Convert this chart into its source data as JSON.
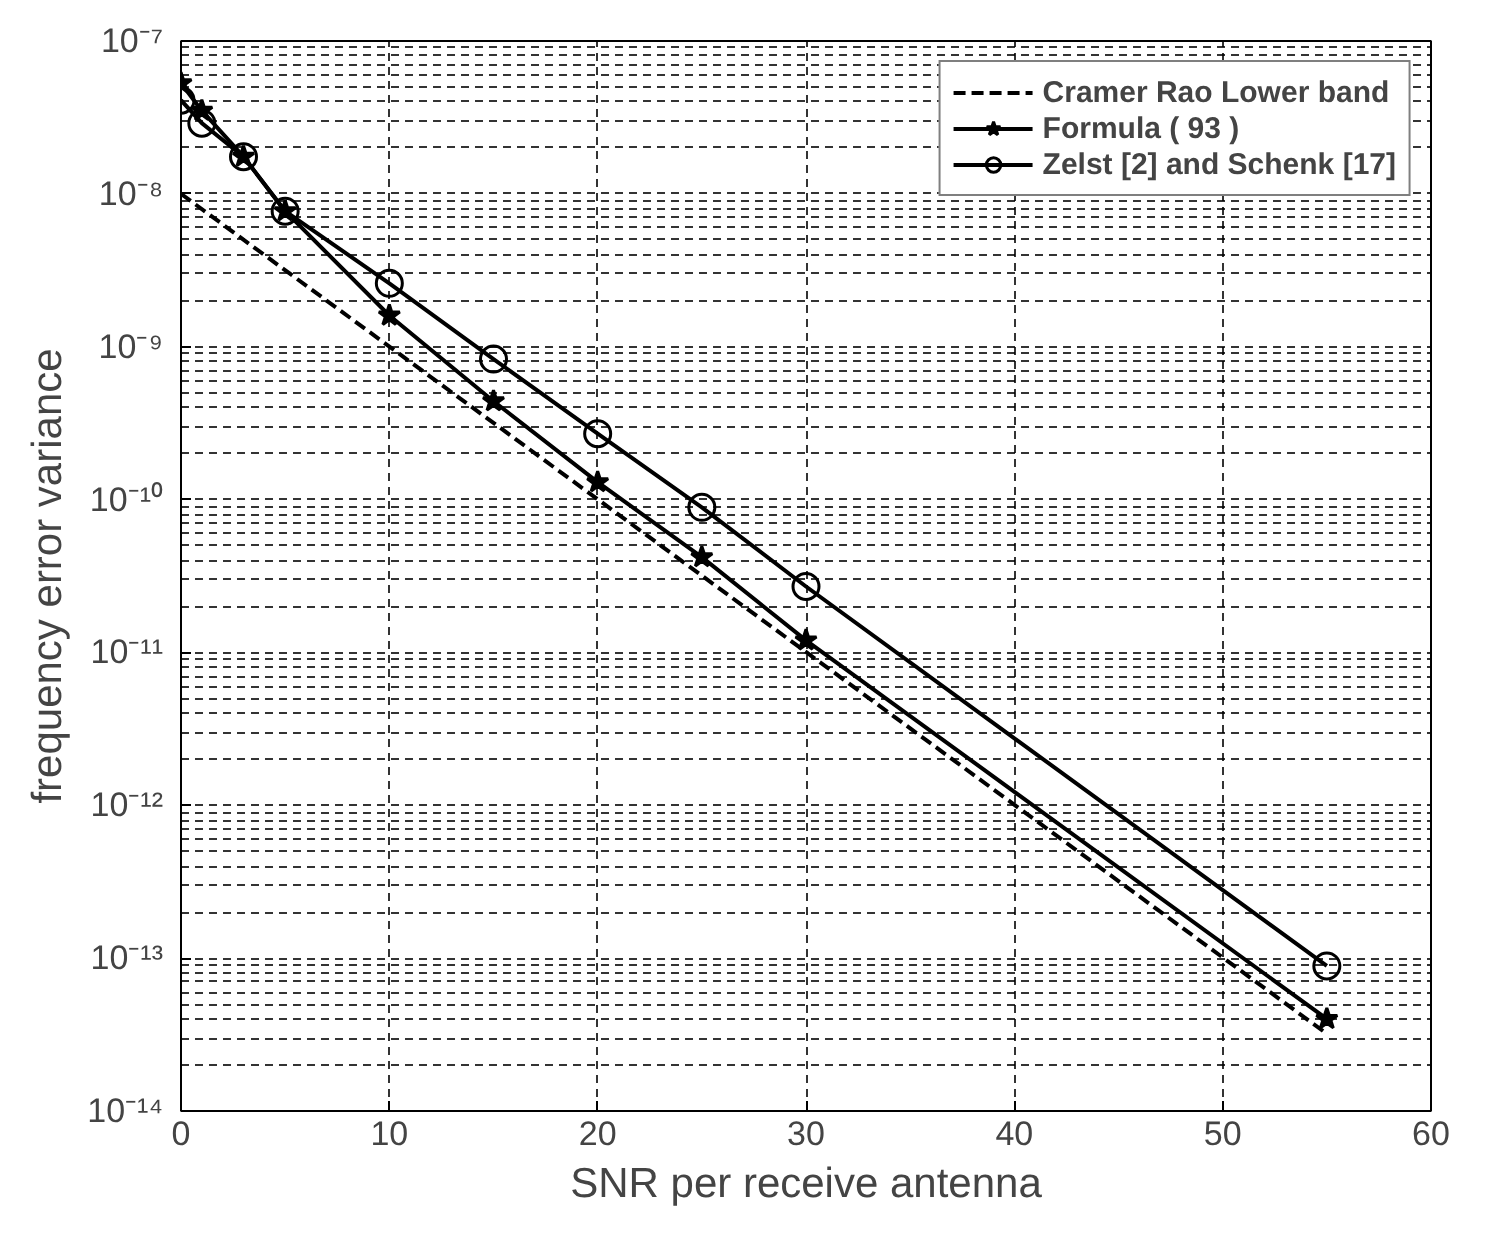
{
  "chart_data": {
    "type": "line",
    "xlabel": "SNR per receive antenna",
    "ylabel": "frequency error variance",
    "log": "y",
    "grid": true,
    "legend": "top right",
    "xlim": [
      0,
      60
    ],
    "xticks": [
      0,
      10,
      20,
      30,
      40,
      50,
      60
    ],
    "ylim": [
      1e-14,
      1e-07
    ],
    "yticks": [
      {
        "value": 1e-14,
        "label": "10⁻¹⁴"
      },
      {
        "value": 1e-13,
        "label": "10⁻¹³"
      },
      {
        "value": 1e-12,
        "label": "10⁻¹²"
      },
      {
        "value": 1e-11,
        "label": "10⁻¹¹"
      },
      {
        "value": 1e-10,
        "label": "10⁻¹⁰"
      },
      {
        "value": 1e-09,
        "label": "10⁻⁹"
      },
      {
        "value": 1e-08,
        "label": "10⁻⁸"
      },
      {
        "value": 1e-07,
        "label": "10⁻⁷"
      }
    ],
    "series": [
      {
        "name": "Cramer Rao Lower band",
        "color": "#000000",
        "line_style": "dashed",
        "marker": "none",
        "x": [
          0,
          55
        ],
        "values": [
          1e-08,
          3.2e-14
        ]
      },
      {
        "name": "Formula ( 93 )",
        "color": "#000000",
        "line_style": "solid",
        "marker": "star",
        "x": [
          0,
          1,
          3,
          5,
          10,
          15,
          20,
          25,
          30,
          55
        ],
        "values": [
          5.3e-08,
          3.5e-08,
          1.75e-08,
          7.7e-09,
          1.6e-09,
          4.4e-10,
          1.3e-10,
          4.2e-11,
          1.2e-11,
          4e-14
        ]
      },
      {
        "name": "Zelst [2] and Schenk [17]",
        "color": "#000000",
        "line_style": "solid",
        "marker": "circle",
        "x": [
          0,
          1,
          3,
          5,
          10,
          15,
          20,
          25,
          30,
          55
        ],
        "values": [
          4.1e-08,
          2.9e-08,
          1.75e-08,
          7.7e-09,
          2.6e-09,
          8.3e-10,
          2.7e-10,
          8.9e-11,
          2.7e-11,
          8.9e-14
        ]
      }
    ]
  }
}
